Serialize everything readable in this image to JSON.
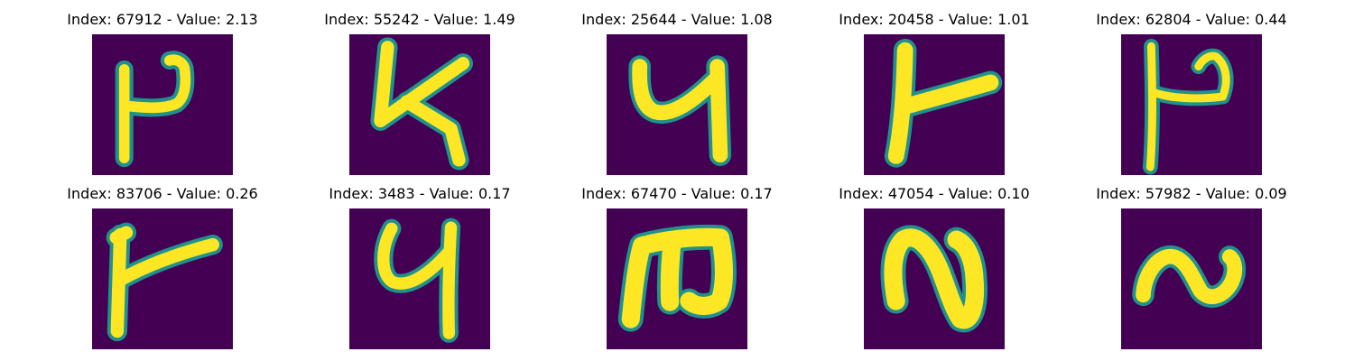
{
  "colors": {
    "background": "#440154",
    "mid": "#21918c",
    "stroke": "#fde725"
  },
  "panels": [
    {
      "label": "Index: 67912 - Value: 2.13",
      "glyph": "digit-p-shaped"
    },
    {
      "label": "Index: 55242 - Value: 1.49",
      "glyph": "digit-four-shaped"
    },
    {
      "label": "Index: 25644 - Value: 1.08",
      "glyph": "digit-four-shaped"
    },
    {
      "label": "Index: 20458 - Value: 1.01",
      "glyph": "digit-one-with-bar"
    },
    {
      "label": "Index: 62804 - Value: 0.44",
      "glyph": "digit-p-shaped"
    },
    {
      "label": "Index: 83706 - Value: 0.26",
      "glyph": "digit-one-with-bar"
    },
    {
      "label": "Index: 3483 - Value: 0.17",
      "glyph": "digit-four-shaped"
    },
    {
      "label": "Index: 67470 - Value: 0.17",
      "glyph": "letter-m-shaped"
    },
    {
      "label": "Index: 47054 - Value: 0.10",
      "glyph": "digit-n-shaped"
    },
    {
      "label": "Index: 57982 - Value: 0.09",
      "glyph": "digit-tilde-shaped"
    }
  ]
}
